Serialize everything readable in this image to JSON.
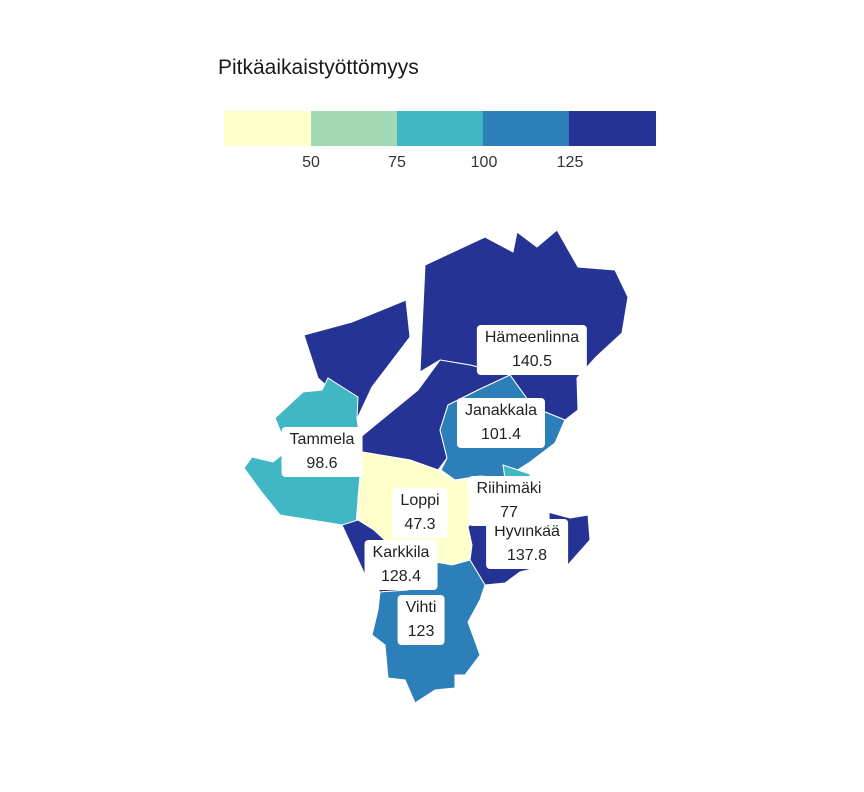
{
  "legend": {
    "title": "Pitkäaikaistyöttömyys",
    "colors": [
      "#ffffcc",
      "#a1dab4",
      "#41b6c4",
      "#2c7fb8",
      "#253494"
    ],
    "ticks": [
      "50",
      "75",
      "100",
      "125"
    ]
  },
  "municipalities": [
    {
      "name": "Hämeenlinna",
      "value": "140.5",
      "color": "#253494"
    },
    {
      "name": "Janakkala",
      "value": "101.4",
      "color": "#2c7fb8"
    },
    {
      "name": "Tammela",
      "value": "98.6",
      "color": "#41b6c4"
    },
    {
      "name": "Riihimäki",
      "value": "77",
      "color": "#41b6c4"
    },
    {
      "name": "Loppi",
      "value": "47.3",
      "color": "#ffffcc"
    },
    {
      "name": "Hyvinkää",
      "value": "137.8",
      "color": "#253494"
    },
    {
      "name": "Karkkila",
      "value": "128.4",
      "color": "#253494"
    },
    {
      "name": "Vihti",
      "value": "123",
      "color": "#2c7fb8"
    }
  ]
}
